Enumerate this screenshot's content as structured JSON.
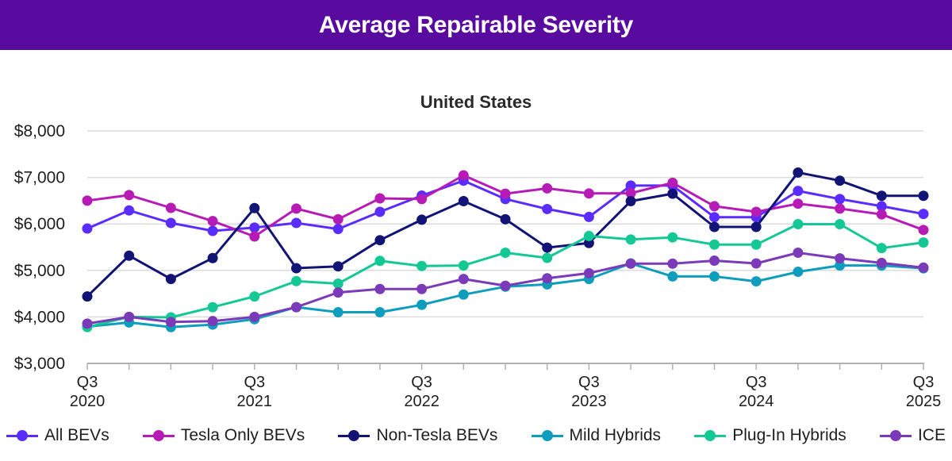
{
  "header": {
    "title": "Average Repairable Severity"
  },
  "colors": {
    "header_bg": "#5a0b9f",
    "gridline": "#dcdcdc",
    "axis": "#b0b0b0"
  },
  "chart_data": {
    "type": "line",
    "title": "Average Repairable Severity",
    "subtitle": "United States",
    "xlabel": "",
    "ylabel": "",
    "ylim": [
      3000,
      8000
    ],
    "yticks": [
      3000,
      4000,
      5000,
      6000,
      7000,
      8000
    ],
    "ytick_labels": [
      "$3,000",
      "$4,000",
      "$5,000",
      "$6,000",
      "$7,000",
      "$8,000"
    ],
    "grid": true,
    "legend_position": "bottom",
    "x": [
      "Q3 2020",
      "Q4 2020",
      "Q1 2021",
      "Q2 2021",
      "Q3 2021",
      "Q4 2021",
      "Q1 2022",
      "Q2 2022",
      "Q3 2022",
      "Q4 2022",
      "Q1 2023",
      "Q2 2023",
      "Q3 2023",
      "Q4 2023",
      "Q1 2024",
      "Q2 2024",
      "Q3 2024",
      "Q4 2024",
      "Q1 2025",
      "Q2 2025",
      "Q3 2025"
    ],
    "xtick_labels": [
      {
        "index": 0,
        "line1": "Q3",
        "line2": "2020"
      },
      {
        "index": 4,
        "line1": "Q3",
        "line2": "2021"
      },
      {
        "index": 8,
        "line1": "Q3",
        "line2": "2022"
      },
      {
        "index": 12,
        "line1": "Q3",
        "line2": "2023"
      },
      {
        "index": 16,
        "line1": "Q3",
        "line2": "2024"
      },
      {
        "index": 20,
        "line1": "Q3",
        "line2": "2025"
      }
    ],
    "series": [
      {
        "name": "All BEVs",
        "color": "#5a2cff",
        "values": [
          5900,
          6290,
          6020,
          5850,
          5920,
          6020,
          5890,
          6260,
          6610,
          6930,
          6535,
          6320,
          6150,
          6825,
          6825,
          6145,
          6145,
          6710,
          6535,
          6380,
          6215
        ]
      },
      {
        "name": "Tesla Only BEVs",
        "color": "#b61cb5",
        "values": [
          6500,
          6620,
          6345,
          6060,
          5730,
          6330,
          6100,
          6550,
          6535,
          7045,
          6650,
          6765,
          6655,
          6660,
          6885,
          6380,
          6260,
          6435,
          6330,
          6205,
          5870
        ]
      },
      {
        "name": "Non-Tesla BEVs",
        "color": "#121475",
        "values": [
          4440,
          5317,
          4815,
          5265,
          6340,
          5047,
          5087,
          5650,
          6090,
          6490,
          6100,
          5490,
          5590,
          6490,
          6650,
          5935,
          5935,
          7105,
          6930,
          6605,
          6605
        ]
      },
      {
        "name": "Mild Hybrids",
        "color": "#0e9dbd",
        "values": [
          3790,
          3880,
          3780,
          3835,
          3950,
          4210,
          4100,
          4100,
          4260,
          4480,
          4650,
          4700,
          4815,
          5150,
          4870,
          4870,
          4765,
          4970,
          5105,
          5105,
          5045
        ]
      },
      {
        "name": "Plug-In Hybrids",
        "color": "#14c896",
        "values": [
          3780,
          4000,
          3990,
          4210,
          4440,
          4770,
          4715,
          5205,
          5095,
          5105,
          5380,
          5270,
          5740,
          5665,
          5710,
          5555,
          5555,
          5995,
          5995,
          5480,
          5600
        ]
      },
      {
        "name": "ICE",
        "color": "#7b3ab8",
        "values": [
          3855,
          4000,
          3890,
          3910,
          4000,
          4210,
          4525,
          4600,
          4600,
          4815,
          4670,
          4830,
          4940,
          5145,
          5145,
          5210,
          5150,
          5380,
          5260,
          5160,
          5060
        ]
      }
    ]
  }
}
